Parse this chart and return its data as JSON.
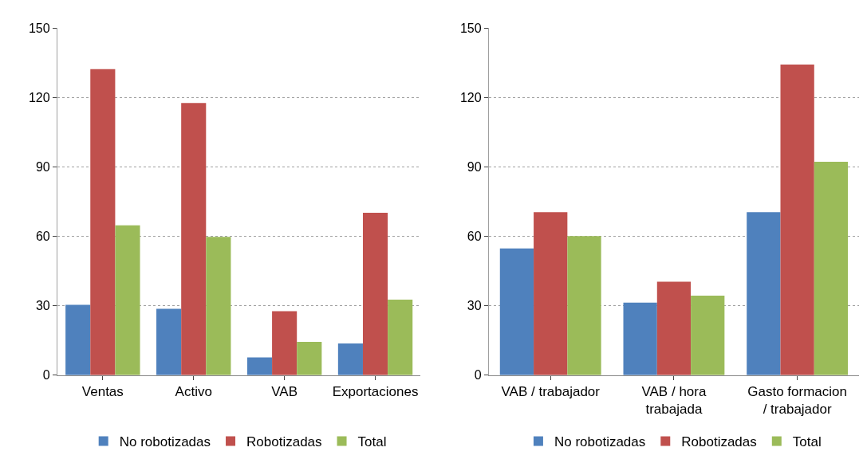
{
  "chart_data": [
    {
      "type": "bar",
      "categories": [
        "Ventas",
        "Activo",
        "VAB",
        "Exportaciones"
      ],
      "ylim": [
        0,
        150
      ],
      "yticks": [
        0,
        30,
        60,
        90,
        120,
        150
      ],
      "grid": "y",
      "legend": "bottom",
      "series": [
        {
          "name": "No robotizadas",
          "color": "#4f81bd",
          "values": [
            30.4,
            28.7,
            7.7,
            13.7
          ]
        },
        {
          "name": "Robotizadas",
          "color": "#c0504d",
          "values": [
            132.3,
            117.6,
            27.7,
            70.2
          ]
        },
        {
          "name": "Total",
          "color": "#9bbb59",
          "values": [
            64.8,
            59.8,
            14.4,
            32.7
          ]
        }
      ]
    },
    {
      "type": "bar",
      "categories": [
        "VAB / trabajador",
        "VAB / hora trabajada",
        "Gasto formacion / trabajador"
      ],
      "ylim": [
        0,
        150
      ],
      "yticks": [
        0,
        30,
        60,
        90,
        120,
        150
      ],
      "grid": "y",
      "legend": "bottom",
      "series": [
        {
          "name": "No robotizadas",
          "color": "#4f81bd",
          "values": [
            54.8,
            31.4,
            70.5
          ]
        },
        {
          "name": "Robotizadas",
          "color": "#c0504d",
          "values": [
            70.5,
            40.4,
            134.3
          ]
        },
        {
          "name": "Total",
          "color": "#9bbb59",
          "values": [
            60.1,
            34.4,
            92.2
          ]
        }
      ]
    }
  ]
}
